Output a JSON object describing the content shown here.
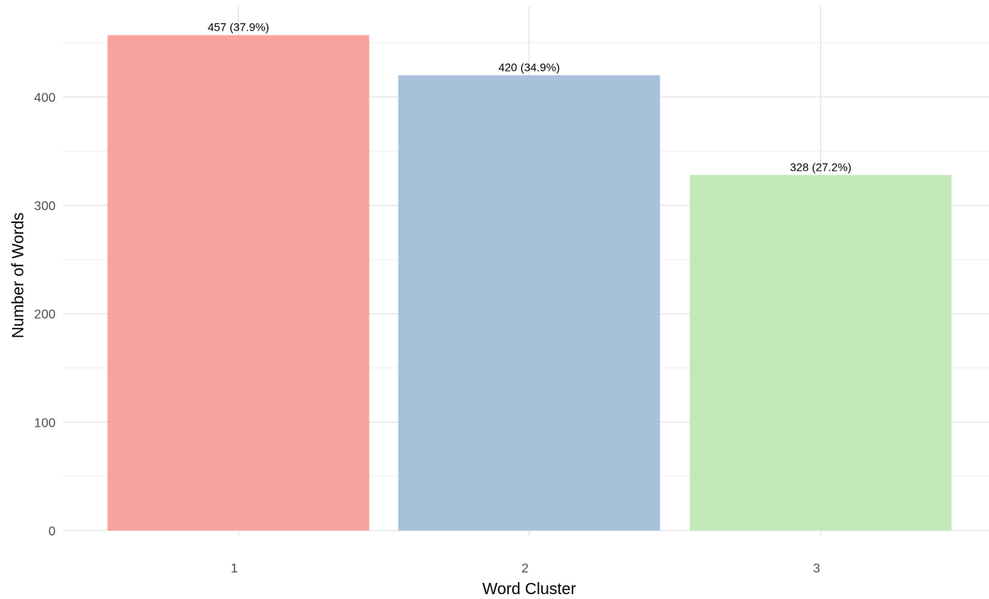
{
  "chart_data": {
    "type": "bar",
    "categories": [
      "1",
      "2",
      "3"
    ],
    "values": [
      457,
      420,
      328
    ],
    "data_labels": [
      "457 (37.9%)",
      "420 (34.9%)",
      "328 (27.2%)"
    ],
    "colors": [
      "#F8A39D",
      "#A8C1DB",
      "#C3E8B8"
    ],
    "xlabel": "Word Cluster",
    "ylabel": "Number of Words",
    "ylim": [
      0,
      480
    ],
    "yticks": [
      0,
      100,
      200,
      300,
      400
    ],
    "ytick_labels": [
      "0",
      "100",
      "200",
      "300",
      "400"
    ],
    "grid": true,
    "legend": "none"
  }
}
